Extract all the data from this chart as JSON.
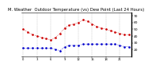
{
  "title": " M.   W...   O.....   T.....   (vs)   D..   P...   (L...   24   H...)",
  "title_text": "M. Weather  Outdoor Temperature (vs) Dew Point (Last 24 Hours)",
  "temp": [
    50,
    46,
    42,
    40,
    38,
    36,
    34,
    38,
    44,
    52,
    56,
    58,
    60,
    64,
    62,
    58,
    54,
    52,
    50,
    48,
    46,
    44,
    42,
    42
  ],
  "dew": [
    22,
    22,
    22,
    22,
    22,
    22,
    22,
    20,
    18,
    24,
    26,
    26,
    26,
    28,
    28,
    28,
    28,
    28,
    28,
    28,
    28,
    26,
    24,
    24
  ],
  "temp_color": "#cc0000",
  "dew_color": "#0000cc",
  "bg_color": "#ffffff",
  "grid_color": "#888888",
  "ylim": [
    10,
    75
  ],
  "yticks": [
    20,
    30,
    40,
    50,
    60,
    70
  ],
  "ytick_labels": [
    "2",
    "3",
    "4",
    "5",
    "6",
    "7"
  ],
  "n_points": 24,
  "title_fontsize": 3.8,
  "tick_fontsize": 3.2,
  "marker_size": 1.8,
  "line_width": 0.5
}
